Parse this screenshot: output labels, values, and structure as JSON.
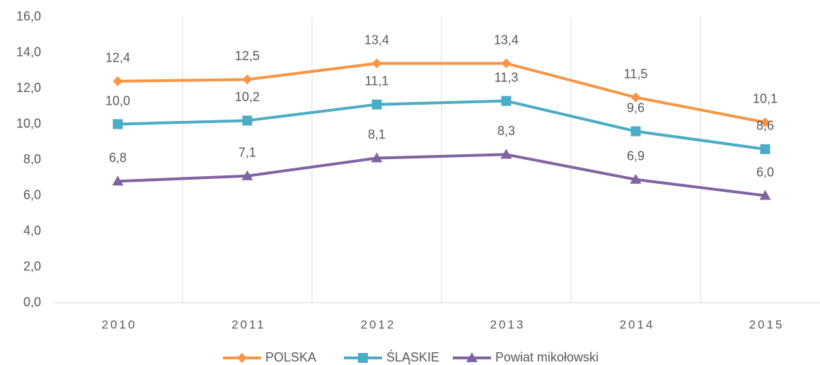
{
  "chart_data": {
    "type": "line",
    "categories": [
      "2010",
      "2011",
      "2012",
      "2013",
      "2014",
      "2015"
    ],
    "series": [
      {
        "name": "POLSKA",
        "color": "#f79646",
        "marker": "diamond",
        "values": [
          12.4,
          12.5,
          13.4,
          13.4,
          11.5,
          10.1
        ],
        "value_labels": [
          "12,4",
          "12,5",
          "13,4",
          "13,4",
          "11,5",
          "10,1"
        ]
      },
      {
        "name": "ŚLĄSKIE",
        "color": "#4bacc6",
        "marker": "square",
        "values": [
          10.0,
          10.2,
          11.1,
          11.3,
          9.6,
          8.6
        ],
        "value_labels": [
          "10,0",
          "10,2",
          "11,1",
          "11,3",
          "9,6",
          "8,6"
        ]
      },
      {
        "name": "Powiat mikołowski",
        "color": "#8064a2",
        "marker": "triangle",
        "values": [
          6.8,
          7.1,
          8.1,
          8.3,
          6.9,
          6.0
        ],
        "value_labels": [
          "6,8",
          "7,1",
          "8,1",
          "8,3",
          "6,9",
          "6,0"
        ]
      }
    ],
    "ylim": [
      0,
      16
    ],
    "yticks": [
      {
        "value": 0,
        "label": "0,0"
      },
      {
        "value": 2,
        "label": "2,0"
      },
      {
        "value": 4,
        "label": "4,0"
      },
      {
        "value": 6,
        "label": "6,0"
      },
      {
        "value": 8,
        "label": "8,0"
      },
      {
        "value": 10,
        "label": "10,0"
      },
      {
        "value": 12,
        "label": "12,0"
      },
      {
        "value": 14,
        "label": "14,0"
      },
      {
        "value": 16,
        "label": "16,0"
      }
    ],
    "grid": true,
    "legend": "bottom"
  }
}
